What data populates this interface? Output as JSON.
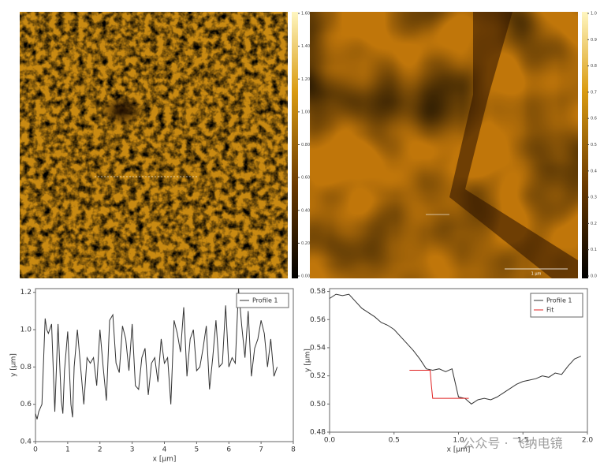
{
  "images": [
    {
      "colorbar_lim": [
        0,
        1.6
      ],
      "colorbar_ticks": [
        {
          "value": 1.6,
          "label": "1.60"
        },
        {
          "value": 1.4,
          "label": "1.40"
        },
        {
          "value": 1.2,
          "label": "1.20"
        },
        {
          "value": 1.0,
          "label": "1.00"
        },
        {
          "value": 0.8,
          "label": "0.80"
        },
        {
          "value": 0.6,
          "label": "0.60"
        },
        {
          "value": 0.4,
          "label": "0.40"
        },
        {
          "value": 0.2,
          "label": "0.20"
        },
        {
          "value": 0,
          "label": "0.00"
        }
      ]
    },
    {
      "colorbar_lim": [
        0,
        1.0
      ],
      "scale_bar": "1 μm",
      "colorbar_ticks": [
        {
          "value": 1.0,
          "label": "1.0"
        },
        0.9,
        0.8,
        0.7,
        0.6,
        0.5,
        0.4,
        0.3,
        0.2,
        0.1,
        {
          "value": 0,
          "label": "0.0"
        }
      ]
    }
  ],
  "chart_data": [
    {
      "type": "line",
      "x_label": "x [μm]",
      "y_label": "y [μm]",
      "xlim": [
        0,
        8
      ],
      "xticks": [
        0,
        1,
        2,
        3,
        4,
        5,
        6,
        7,
        8
      ],
      "ylim": [
        0.4,
        1.22
      ],
      "yticks": [
        0.4,
        0.6,
        0.8,
        {
          "value": 1.0,
          "label": "1.0"
        },
        1.2
      ],
      "legend": "top-right",
      "series": [
        {
          "name": "Profile 1",
          "color": "#333333",
          "x": [
            0,
            0.05,
            0.1,
            0.2,
            0.3,
            0.35,
            0.4,
            0.5,
            0.6,
            0.7,
            0.8,
            0.85,
            0.9,
            1.0,
            1.1,
            1.15,
            1.2,
            1.3,
            1.4,
            1.5,
            1.6,
            1.7,
            1.8,
            1.9,
            2.0,
            2.1,
            2.2,
            2.3,
            2.4,
            2.5,
            2.6,
            2.7,
            2.8,
            2.9,
            3.0,
            3.1,
            3.2,
            3.3,
            3.4,
            3.5,
            3.6,
            3.7,
            3.8,
            3.9,
            4.0,
            4.1,
            4.2,
            4.3,
            4.4,
            4.5,
            4.6,
            4.7,
            4.8,
            4.9,
            5.0,
            5.1,
            5.2,
            5.3,
            5.4,
            5.5,
            5.6,
            5.7,
            5.8,
            5.9,
            6.0,
            6.1,
            6.2,
            6.3,
            6.4,
            6.5,
            6.6,
            6.7,
            6.8,
            6.9,
            7.0,
            7.1,
            7.2,
            7.3,
            7.4,
            7.5
          ],
          "values": [
            0.55,
            0.52,
            0.56,
            0.6,
            1.06,
            1.0,
            0.98,
            1.03,
            0.56,
            1.03,
            0.62,
            0.55,
            0.78,
            0.99,
            0.6,
            0.53,
            0.8,
            1.0,
            0.8,
            0.6,
            0.85,
            0.82,
            0.85,
            0.7,
            1.0,
            0.8,
            0.62,
            1.05,
            1.08,
            0.82,
            0.77,
            1.02,
            0.95,
            0.78,
            1.03,
            0.7,
            0.68,
            0.85,
            0.9,
            0.65,
            0.82,
            0.85,
            0.72,
            0.95,
            0.82,
            0.85,
            0.6,
            1.05,
            0.98,
            0.88,
            1.12,
            0.75,
            0.95,
            1.0,
            0.78,
            0.8,
            0.9,
            1.02,
            0.68,
            0.85,
            1.05,
            0.8,
            0.82,
            1.13,
            0.8,
            0.85,
            0.82,
            1.22,
            1.02,
            0.85,
            1.1,
            0.75,
            0.9,
            0.95,
            1.05,
            0.98,
            0.8,
            0.95,
            0.75,
            0.8
          ]
        }
      ]
    },
    {
      "type": "line",
      "x_label": "x [μm]",
      "y_label": "y [μm]",
      "xlim": [
        0,
        2.0
      ],
      "xticks": [
        {
          "value": 0,
          "label": "0.0"
        },
        0.5,
        {
          "value": 1.0,
          "label": "1.0"
        },
        1.5,
        {
          "value": 2.0,
          "label": "2.0"
        }
      ],
      "ylim": [
        0.48,
        0.582
      ],
      "yticks": [
        0.48,
        {
          "value": 0.5,
          "label": "0.50"
        },
        0.52,
        0.54,
        0.56,
        0.58
      ],
      "legend": "top-right",
      "series": [
        {
          "name": "Profile 1",
          "color": "#333333",
          "x": [
            0,
            0.05,
            0.1,
            0.15,
            0.2,
            0.25,
            0.3,
            0.35,
            0.4,
            0.45,
            0.5,
            0.55,
            0.6,
            0.65,
            0.7,
            0.75,
            0.8,
            0.85,
            0.9,
            0.95,
            1.0,
            1.05,
            1.1,
            1.15,
            1.2,
            1.25,
            1.3,
            1.35,
            1.4,
            1.45,
            1.5,
            1.55,
            1.6,
            1.65,
            1.7,
            1.75,
            1.8,
            1.85,
            1.9,
            1.95
          ],
          "values": [
            0.575,
            0.578,
            0.577,
            0.578,
            0.573,
            0.568,
            0.565,
            0.562,
            0.558,
            0.556,
            0.553,
            0.548,
            0.543,
            0.538,
            0.532,
            0.525,
            0.524,
            0.525,
            0.523,
            0.525,
            0.505,
            0.504,
            0.5,
            0.503,
            0.504,
            0.503,
            0.505,
            0.508,
            0.511,
            0.514,
            0.516,
            0.517,
            0.518,
            0.52,
            0.519,
            0.522,
            0.521,
            0.527,
            0.532,
            0.534
          ]
        },
        {
          "name": "Fit",
          "color": "#e02020",
          "x": [
            0.62,
            0.78,
            0.79,
            0.8,
            1.08
          ],
          "values": [
            0.524,
            0.524,
            0.513,
            0.504,
            0.504
          ]
        }
      ]
    }
  ],
  "watermark": "公众号 · 飞纳电镜"
}
